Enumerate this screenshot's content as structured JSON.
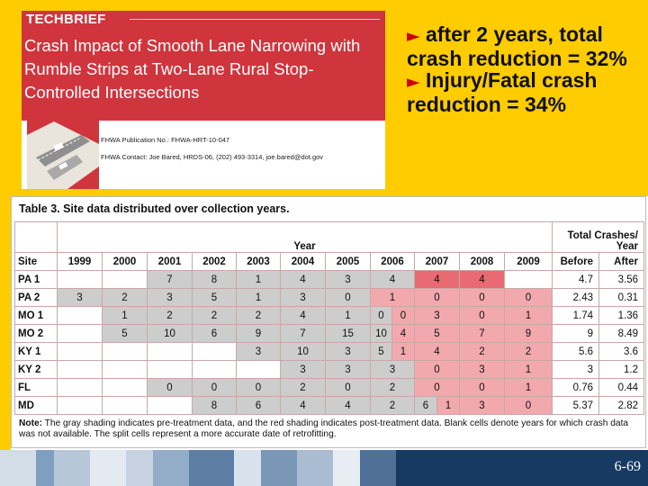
{
  "brief": {
    "kicker_bold": "TECH",
    "kicker_rest": "BRIEF",
    "title": "Crash Impact of Smooth Lane Narrowing with Rumble Strips at Two-Lane Rural Stop-Controlled Intersections",
    "publication": "FHWA Publication No.: FHWA-HRT-10-047",
    "contact": "FHWA Contact: Joe Bared, HRDS-06, (202) 493-3314, joe.bared@dot.gov"
  },
  "bullets": [
    {
      "arrow": "►",
      "text": " after 2 years, total crash reduction = 32%"
    },
    {
      "arrow": "►",
      "text": " Injury/Fatal crash reduction = 34%"
    }
  ],
  "table": {
    "caption": "Table 3. Site data distributed over collection years.",
    "year_group": "Year",
    "total_group": "Total Crashes/ Year",
    "col_site": "Site",
    "years": [
      "1999",
      "2000",
      "2001",
      "2002",
      "2003",
      "2004",
      "2005",
      "2006",
      "2007",
      "2008",
      "2009"
    ],
    "col_before": "Before",
    "col_after": "After",
    "rows": [
      {
        "site": "PA 1",
        "c1999": "",
        "c2000": "",
        "c2001": "7",
        "c2002": "8",
        "c2003": "1",
        "c2004": "4",
        "c2005": "3",
        "c2006": "4",
        "c2007": "4",
        "c2008": "4",
        "c2009": "",
        "before": "4.7",
        "after": "3.56"
      },
      {
        "site": "PA 2",
        "c1999": "3",
        "c2000": "2",
        "c2001": "3",
        "c2002": "5",
        "c2003": "1",
        "c2004": "3",
        "c2005": "0",
        "c2006": "1",
        "c2007": "0",
        "c2008": "0",
        "c2009": "0",
        "before": "2.43",
        "after": "0.31"
      },
      {
        "site": "MO 1",
        "c1999": "",
        "c2000": "1",
        "c2001": "2",
        "c2002": "2",
        "c2003": "2",
        "c2004": "4",
        "c2005": "1",
        "c2006a": "0",
        "c2006b": "0",
        "c2007": "3",
        "c2008": "0",
        "c2009": "1",
        "before": "1.74",
        "after": "1.36"
      },
      {
        "site": "MO 2",
        "c1999": "",
        "c2000": "5",
        "c2001": "10",
        "c2002": "6",
        "c2003": "9",
        "c2004": "7",
        "c2005": "15",
        "c2006a": "10",
        "c2006b": "4",
        "c2007": "5",
        "c2008": "7",
        "c2009": "9",
        "before": "9",
        "after": "8.49"
      },
      {
        "site": "KY 1",
        "c1999": "",
        "c2000": "",
        "c2001": "",
        "c2002": "",
        "c2003": "3",
        "c2004": "10",
        "c2005": "3",
        "c2006a": "5",
        "c2006b": "1",
        "c2007": "4",
        "c2008": "2",
        "c2009": "2",
        "before": "5.6",
        "after": "3.6"
      },
      {
        "site": "KY 2",
        "c1999": "",
        "c2000": "",
        "c2001": "",
        "c2002": "",
        "c2003": "",
        "c2004": "3",
        "c2005": "3",
        "c2006": "3",
        "c2007": "0",
        "c2008": "3",
        "c2009": "1",
        "before": "3",
        "after": "1.2"
      },
      {
        "site": "FL",
        "c1999": "",
        "c2000": "",
        "c2001": "0",
        "c2002": "0",
        "c2003": "0",
        "c2004": "2",
        "c2005": "0",
        "c2006": "2",
        "c2007": "0",
        "c2008": "0",
        "c2009": "1",
        "before": "0.76",
        "after": "0.44"
      },
      {
        "site": "MD",
        "c1999": "",
        "c2000": "",
        "c2001": "",
        "c2002": "8",
        "c2003": "6",
        "c2004": "4",
        "c2005": "4",
        "c2006": "2",
        "c2007a": "6",
        "c2007b": "1",
        "c2008": "3",
        "c2009": "0",
        "before": "5.37",
        "after": "2.82"
      }
    ],
    "note_label": "Note:",
    "note_text": " The gray shading indicates pre-treatment data, and the red shading indicates post-treatment data. Blank cells denote years for which crash data was not available. The split cells represent a more accurate date of retrofitting."
  },
  "footer": {
    "page": "6-69"
  },
  "colors": {
    "accent_yellow": "#ffcc00",
    "brief_red": "#d0343c",
    "pre_treatment_gray": "#cdcdcd",
    "post_treatment_red": "#f2a9ad",
    "footer_navy": "#173a63"
  }
}
